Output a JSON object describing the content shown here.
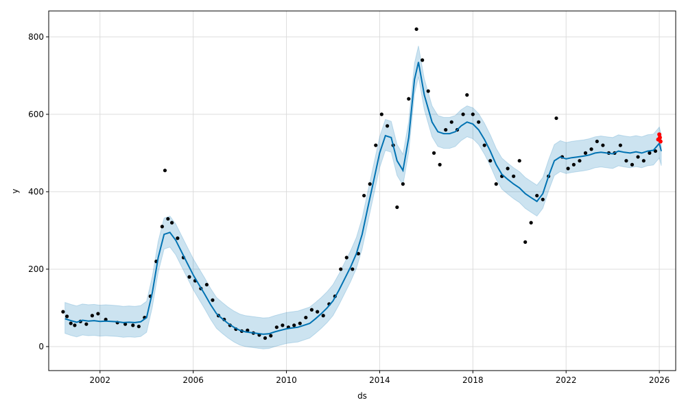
{
  "chart_data": {
    "type": "line",
    "xlabel": "ds",
    "ylabel": "y",
    "x_axis_type": "date",
    "xlim": [
      "1999-10-20",
      "2026-09-15"
    ],
    "ylim": [
      -62,
      867
    ],
    "x_ticks": [
      {
        "date": "2002-01-01",
        "label": "2002"
      },
      {
        "date": "2006-01-01",
        "label": "2006"
      },
      {
        "date": "2010-01-01",
        "label": "2010"
      },
      {
        "date": "2014-01-01",
        "label": "2014"
      },
      {
        "date": "2018-01-01",
        "label": "2018"
      },
      {
        "date": "2022-01-01",
        "label": "2022"
      },
      {
        "date": "2026-01-01",
        "label": "2026"
      }
    ],
    "y_ticks": [
      {
        "value": 0,
        "label": "0"
      },
      {
        "value": 200,
        "label": "200"
      },
      {
        "value": 400,
        "label": "400"
      },
      {
        "value": 600,
        "label": "600"
      },
      {
        "value": 800,
        "label": "800"
      }
    ],
    "grid": true,
    "colors": {
      "forecast": "#0072B2",
      "interval": "#0072B2",
      "observed": "#000000",
      "highlight": "#ff0000"
    },
    "series": [
      {
        "kind": "forecast",
        "points": [
          [
            "2000-07-01",
            72
          ],
          [
            "2000-10-01",
            67
          ],
          [
            "2001-01-01",
            63
          ],
          [
            "2001-04-01",
            68
          ],
          [
            "2001-07-01",
            66
          ],
          [
            "2001-10-01",
            67
          ],
          [
            "2002-01-01",
            65
          ],
          [
            "2002-04-01",
            66
          ],
          [
            "2002-07-01",
            65
          ],
          [
            "2002-10-01",
            64
          ],
          [
            "2003-01-01",
            62
          ],
          [
            "2003-04-01",
            63
          ],
          [
            "2003-07-01",
            62
          ],
          [
            "2003-10-01",
            64
          ],
          [
            "2004-01-01",
            75
          ],
          [
            "2004-04-01",
            140
          ],
          [
            "2004-07-01",
            230
          ],
          [
            "2004-10-01",
            290
          ],
          [
            "2005-01-01",
            295
          ],
          [
            "2005-04-01",
            275
          ],
          [
            "2005-07-01",
            245
          ],
          [
            "2005-10-01",
            215
          ],
          [
            "2006-01-01",
            185
          ],
          [
            "2006-04-01",
            160
          ],
          [
            "2006-07-01",
            135
          ],
          [
            "2006-10-01",
            108
          ],
          [
            "2007-01-01",
            85
          ],
          [
            "2007-04-01",
            72
          ],
          [
            "2007-07-01",
            60
          ],
          [
            "2007-10-01",
            50
          ],
          [
            "2008-01-01",
            42
          ],
          [
            "2008-04-01",
            38
          ],
          [
            "2008-07-01",
            36
          ],
          [
            "2008-10-01",
            34
          ],
          [
            "2009-01-01",
            32
          ],
          [
            "2009-04-01",
            33
          ],
          [
            "2009-07-01",
            38
          ],
          [
            "2009-10-01",
            42
          ],
          [
            "2010-01-01",
            46
          ],
          [
            "2010-04-01",
            48
          ],
          [
            "2010-07-01",
            50
          ],
          [
            "2010-10-01",
            55
          ],
          [
            "2011-01-01",
            60
          ],
          [
            "2011-04-01",
            72
          ],
          [
            "2011-07-01",
            85
          ],
          [
            "2011-10-01",
            100
          ],
          [
            "2012-01-01",
            118
          ],
          [
            "2012-04-01",
            145
          ],
          [
            "2012-07-01",
            175
          ],
          [
            "2012-10-01",
            205
          ],
          [
            "2013-01-01",
            240
          ],
          [
            "2013-04-01",
            290
          ],
          [
            "2013-07-01",
            360
          ],
          [
            "2013-10-01",
            430
          ],
          [
            "2014-01-01",
            500
          ],
          [
            "2014-04-01",
            545
          ],
          [
            "2014-07-01",
            540
          ],
          [
            "2014-10-01",
            480
          ],
          [
            "2015-01-01",
            455
          ],
          [
            "2015-04-01",
            540
          ],
          [
            "2015-07-01",
            690
          ],
          [
            "2015-09-01",
            735
          ],
          [
            "2015-12-01",
            650
          ],
          [
            "2016-04-01",
            580
          ],
          [
            "2016-07-01",
            555
          ],
          [
            "2016-10-01",
            550
          ],
          [
            "2017-01-01",
            550
          ],
          [
            "2017-04-01",
            555
          ],
          [
            "2017-07-01",
            570
          ],
          [
            "2017-10-01",
            580
          ],
          [
            "2018-01-01",
            575
          ],
          [
            "2018-04-01",
            560
          ],
          [
            "2018-07-01",
            535
          ],
          [
            "2018-10-01",
            505
          ],
          [
            "2019-01-01",
            470
          ],
          [
            "2019-04-01",
            445
          ],
          [
            "2019-07-01",
            432
          ],
          [
            "2019-10-01",
            420
          ],
          [
            "2020-01-01",
            410
          ],
          [
            "2020-04-01",
            395
          ],
          [
            "2020-07-01",
            385
          ],
          [
            "2020-10-01",
            375
          ],
          [
            "2021-01-01",
            395
          ],
          [
            "2021-04-01",
            440
          ],
          [
            "2021-07-01",
            480
          ],
          [
            "2021-10-01",
            490
          ],
          [
            "2022-01-01",
            485
          ],
          [
            "2022-04-01",
            488
          ],
          [
            "2022-07-01",
            490
          ],
          [
            "2022-10-01",
            492
          ],
          [
            "2023-01-01",
            495
          ],
          [
            "2023-04-01",
            500
          ],
          [
            "2023-07-01",
            502
          ],
          [
            "2023-10-01",
            500
          ],
          [
            "2024-01-01",
            498
          ],
          [
            "2024-04-01",
            505
          ],
          [
            "2024-07-01",
            502
          ],
          [
            "2024-10-01",
            500
          ],
          [
            "2025-01-01",
            503
          ],
          [
            "2025-04-01",
            500
          ],
          [
            "2025-07-01",
            505
          ],
          [
            "2025-10-01",
            507
          ],
          [
            "2026-01-01",
            525
          ],
          [
            "2026-02-01",
            505
          ]
        ],
        "lower_offset": -38,
        "upper_offset": 42
      },
      {
        "kind": "observed",
        "points": [
          [
            "2000-06-01",
            90
          ],
          [
            "2000-08-01",
            78
          ],
          [
            "2000-10-01",
            60
          ],
          [
            "2000-12-01",
            55
          ],
          [
            "2001-03-01",
            65
          ],
          [
            "2001-06-01",
            58
          ],
          [
            "2001-09-01",
            80
          ],
          [
            "2001-12-01",
            85
          ],
          [
            "2002-04-01",
            70
          ],
          [
            "2002-10-01",
            62
          ],
          [
            "2003-02-01",
            58
          ],
          [
            "2003-06-01",
            55
          ],
          [
            "2003-09-01",
            52
          ],
          [
            "2003-12-01",
            75
          ],
          [
            "2004-03-01",
            130
          ],
          [
            "2004-06-01",
            220
          ],
          [
            "2004-09-01",
            310
          ],
          [
            "2004-10-15",
            455
          ],
          [
            "2004-12-01",
            330
          ],
          [
            "2005-02-01",
            320
          ],
          [
            "2005-05-01",
            280
          ],
          [
            "2005-08-01",
            230
          ],
          [
            "2005-11-01",
            180
          ],
          [
            "2006-02-01",
            170
          ],
          [
            "2006-05-01",
            150
          ],
          [
            "2006-08-01",
            160
          ],
          [
            "2006-11-01",
            120
          ],
          [
            "2007-02-01",
            80
          ],
          [
            "2007-05-01",
            70
          ],
          [
            "2007-08-01",
            55
          ],
          [
            "2007-11-01",
            45
          ],
          [
            "2008-02-01",
            40
          ],
          [
            "2008-05-01",
            42
          ],
          [
            "2008-08-01",
            35
          ],
          [
            "2008-11-01",
            30
          ],
          [
            "2009-02-01",
            22
          ],
          [
            "2009-05-01",
            28
          ],
          [
            "2009-08-01",
            50
          ],
          [
            "2009-11-01",
            55
          ],
          [
            "2010-02-01",
            50
          ],
          [
            "2010-05-01",
            55
          ],
          [
            "2010-08-01",
            60
          ],
          [
            "2010-11-01",
            75
          ],
          [
            "2011-02-01",
            95
          ],
          [
            "2011-05-01",
            90
          ],
          [
            "2011-08-01",
            80
          ],
          [
            "2011-11-01",
            110
          ],
          [
            "2012-02-01",
            130
          ],
          [
            "2012-05-01",
            200
          ],
          [
            "2012-08-01",
            230
          ],
          [
            "2012-11-01",
            200
          ],
          [
            "2013-02-01",
            240
          ],
          [
            "2013-05-01",
            390
          ],
          [
            "2013-08-01",
            420
          ],
          [
            "2013-11-01",
            520
          ],
          [
            "2014-02-01",
            600
          ],
          [
            "2014-05-01",
            570
          ],
          [
            "2014-08-01",
            520
          ],
          [
            "2014-10-01",
            360
          ],
          [
            "2015-01-01",
            420
          ],
          [
            "2015-04-01",
            640
          ],
          [
            "2015-08-01",
            820
          ],
          [
            "2015-11-01",
            740
          ],
          [
            "2016-02-01",
            660
          ],
          [
            "2016-05-01",
            500
          ],
          [
            "2016-08-01",
            470
          ],
          [
            "2016-11-01",
            560
          ],
          [
            "2017-02-01",
            580
          ],
          [
            "2017-05-01",
            560
          ],
          [
            "2017-08-01",
            600
          ],
          [
            "2017-10-01",
            650
          ],
          [
            "2018-01-01",
            600
          ],
          [
            "2018-04-01",
            580
          ],
          [
            "2018-07-01",
            520
          ],
          [
            "2018-10-01",
            480
          ],
          [
            "2019-01-01",
            420
          ],
          [
            "2019-04-01",
            440
          ],
          [
            "2019-07-01",
            460
          ],
          [
            "2019-10-01",
            440
          ],
          [
            "2020-01-01",
            480
          ],
          [
            "2020-04-01",
            270
          ],
          [
            "2020-07-01",
            320
          ],
          [
            "2020-10-01",
            390
          ],
          [
            "2021-01-01",
            380
          ],
          [
            "2021-04-01",
            440
          ],
          [
            "2021-08-01",
            590
          ],
          [
            "2021-11-01",
            490
          ],
          [
            "2022-02-01",
            460
          ],
          [
            "2022-05-01",
            470
          ],
          [
            "2022-08-01",
            480
          ],
          [
            "2022-11-01",
            500
          ],
          [
            "2023-02-01",
            510
          ],
          [
            "2023-05-01",
            530
          ],
          [
            "2023-08-01",
            520
          ],
          [
            "2023-11-01",
            500
          ],
          [
            "2024-02-01",
            500
          ],
          [
            "2024-05-01",
            520
          ],
          [
            "2024-08-01",
            480
          ],
          [
            "2024-11-01",
            470
          ],
          [
            "2025-02-01",
            490
          ],
          [
            "2025-05-01",
            480
          ],
          [
            "2025-08-01",
            500
          ],
          [
            "2025-11-01",
            505
          ]
        ]
      },
      {
        "kind": "highlight",
        "points": [
          [
            "2025-12-15",
            535
          ],
          [
            "2026-01-01",
            548
          ],
          [
            "2026-01-10",
            540
          ],
          [
            "2026-01-20",
            530
          ]
        ]
      }
    ]
  }
}
